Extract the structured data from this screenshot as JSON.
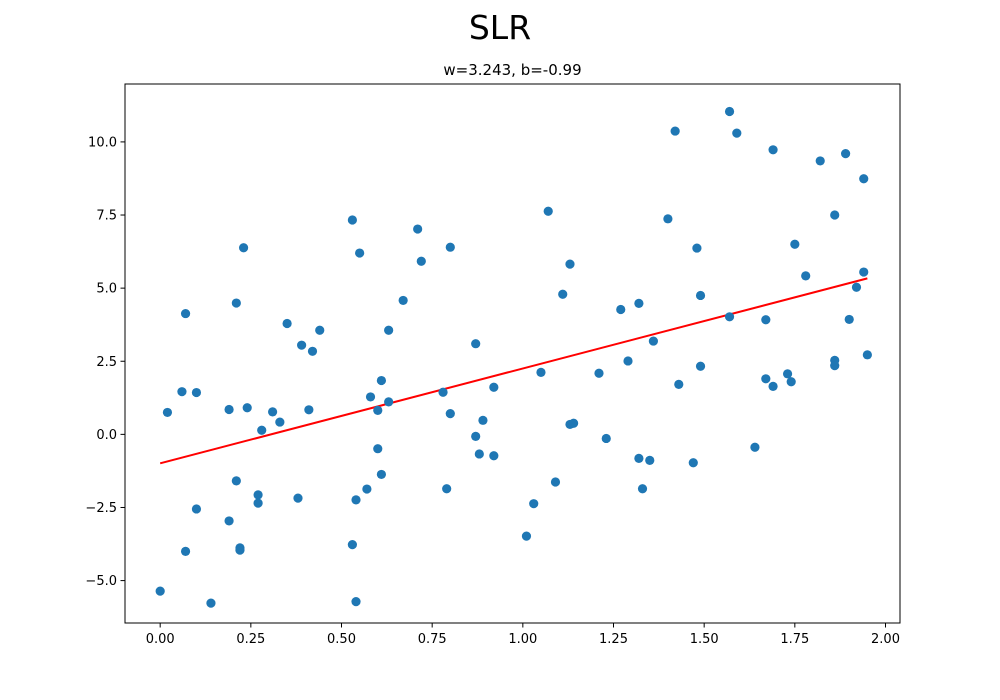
{
  "figure": {
    "suptitle": "SLR"
  },
  "chart_data": {
    "type": "scatter",
    "title": "w=3.243, b=-0.99",
    "xlabel": "",
    "ylabel": "",
    "xlim": [
      -0.097,
      2.04
    ],
    "ylim": [
      -6.45,
      11.98
    ],
    "xticks": [
      0.0,
      0.25,
      0.5,
      0.75,
      1.0,
      1.25,
      1.5,
      1.75,
      2.0
    ],
    "xtick_labels": [
      "0.00",
      "0.25",
      "0.50",
      "0.75",
      "1.00",
      "1.25",
      "1.50",
      "1.75",
      "2.00"
    ],
    "yticks": [
      -5.0,
      -2.5,
      0.0,
      2.5,
      5.0,
      7.5,
      10.0
    ],
    "ytick_labels": [
      "−5.0",
      "−2.5",
      "0.0",
      "2.5",
      "5.0",
      "7.5",
      "10.0"
    ],
    "grid": false,
    "colors": {
      "points": "#1f77b4",
      "line": "#ff0000",
      "axes": "#000000"
    },
    "points": [
      {
        "x": 0.0,
        "y": -5.36
      },
      {
        "x": 0.02,
        "y": 0.75
      },
      {
        "x": 0.06,
        "y": 1.46
      },
      {
        "x": 0.07,
        "y": 4.13
      },
      {
        "x": 0.07,
        "y": -4.0
      },
      {
        "x": 0.1,
        "y": 1.43
      },
      {
        "x": 0.1,
        "y": -2.55
      },
      {
        "x": 0.14,
        "y": -5.77
      },
      {
        "x": 0.19,
        "y": 0.85
      },
      {
        "x": 0.19,
        "y": -2.96
      },
      {
        "x": 0.21,
        "y": 4.49
      },
      {
        "x": 0.21,
        "y": -1.59
      },
      {
        "x": 0.22,
        "y": -3.88
      },
      {
        "x": 0.22,
        "y": -3.96
      },
      {
        "x": 0.23,
        "y": 6.38
      },
      {
        "x": 0.24,
        "y": 0.91
      },
      {
        "x": 0.27,
        "y": -2.07
      },
      {
        "x": 0.27,
        "y": -2.35
      },
      {
        "x": 0.28,
        "y": 0.14
      },
      {
        "x": 0.31,
        "y": 0.77
      },
      {
        "x": 0.33,
        "y": 0.42
      },
      {
        "x": 0.35,
        "y": 3.79
      },
      {
        "x": 0.38,
        "y": -2.18
      },
      {
        "x": 0.39,
        "y": 3.05
      },
      {
        "x": 0.41,
        "y": 0.84
      },
      {
        "x": 0.42,
        "y": 2.84
      },
      {
        "x": 0.44,
        "y": 3.56
      },
      {
        "x": 0.53,
        "y": 7.33
      },
      {
        "x": 0.53,
        "y": -3.77
      },
      {
        "x": 0.54,
        "y": -5.72
      },
      {
        "x": 0.54,
        "y": -2.24
      },
      {
        "x": 0.55,
        "y": 6.2
      },
      {
        "x": 0.57,
        "y": -1.87
      },
      {
        "x": 0.58,
        "y": 1.28
      },
      {
        "x": 0.6,
        "y": 0.82
      },
      {
        "x": 0.6,
        "y": -0.49
      },
      {
        "x": 0.61,
        "y": 1.84
      },
      {
        "x": 0.61,
        "y": -1.37
      },
      {
        "x": 0.63,
        "y": 3.56
      },
      {
        "x": 0.63,
        "y": 1.11
      },
      {
        "x": 0.67,
        "y": 4.58
      },
      {
        "x": 0.71,
        "y": 7.02
      },
      {
        "x": 0.72,
        "y": 5.92
      },
      {
        "x": 0.78,
        "y": 1.44
      },
      {
        "x": 0.79,
        "y": -1.86
      },
      {
        "x": 0.8,
        "y": 0.71
      },
      {
        "x": 0.8,
        "y": 6.4
      },
      {
        "x": 0.87,
        "y": 3.1
      },
      {
        "x": 0.87,
        "y": -0.07
      },
      {
        "x": 0.88,
        "y": -0.67
      },
      {
        "x": 0.89,
        "y": 0.48
      },
      {
        "x": 0.92,
        "y": 1.61
      },
      {
        "x": 0.92,
        "y": -0.73
      },
      {
        "x": 1.01,
        "y": -3.48
      },
      {
        "x": 1.03,
        "y": -2.37
      },
      {
        "x": 1.05,
        "y": 2.12
      },
      {
        "x": 1.07,
        "y": 7.63
      },
      {
        "x": 1.09,
        "y": -1.63
      },
      {
        "x": 1.11,
        "y": 4.79
      },
      {
        "x": 1.13,
        "y": 5.82
      },
      {
        "x": 1.13,
        "y": 0.34
      },
      {
        "x": 1.14,
        "y": 0.38
      },
      {
        "x": 1.21,
        "y": 2.09
      },
      {
        "x": 1.23,
        "y": -0.14
      },
      {
        "x": 1.27,
        "y": 4.27
      },
      {
        "x": 1.29,
        "y": 2.51
      },
      {
        "x": 1.32,
        "y": 4.48
      },
      {
        "x": 1.32,
        "y": -0.82
      },
      {
        "x": 1.33,
        "y": -1.86
      },
      {
        "x": 1.35,
        "y": -0.89
      },
      {
        "x": 1.36,
        "y": 3.19
      },
      {
        "x": 1.4,
        "y": 7.37
      },
      {
        "x": 1.42,
        "y": 10.37
      },
      {
        "x": 1.43,
        "y": 1.71
      },
      {
        "x": 1.47,
        "y": -0.97
      },
      {
        "x": 1.48,
        "y": 6.37
      },
      {
        "x": 1.49,
        "y": 4.75
      },
      {
        "x": 1.49,
        "y": 2.33
      },
      {
        "x": 1.57,
        "y": 11.04
      },
      {
        "x": 1.57,
        "y": 4.02
      },
      {
        "x": 1.59,
        "y": 10.3
      },
      {
        "x": 1.64,
        "y": -0.44
      },
      {
        "x": 1.67,
        "y": 3.92
      },
      {
        "x": 1.67,
        "y": 1.9
      },
      {
        "x": 1.69,
        "y": 9.73
      },
      {
        "x": 1.69,
        "y": 1.64
      },
      {
        "x": 1.73,
        "y": 2.07
      },
      {
        "x": 1.74,
        "y": 1.8
      },
      {
        "x": 1.75,
        "y": 6.5
      },
      {
        "x": 1.78,
        "y": 5.42
      },
      {
        "x": 1.82,
        "y": 9.35
      },
      {
        "x": 1.86,
        "y": 7.5
      },
      {
        "x": 1.86,
        "y": 2.53
      },
      {
        "x": 1.86,
        "y": 2.35
      },
      {
        "x": 1.89,
        "y": 9.6
      },
      {
        "x": 1.9,
        "y": 3.93
      },
      {
        "x": 1.92,
        "y": 5.03
      },
      {
        "x": 1.94,
        "y": 8.74
      },
      {
        "x": 1.94,
        "y": 5.55
      },
      {
        "x": 1.95,
        "y": 2.72
      }
    ],
    "fit_line": {
      "w": 3.243,
      "b": -0.99,
      "x_range": [
        0.0,
        1.95
      ]
    }
  }
}
